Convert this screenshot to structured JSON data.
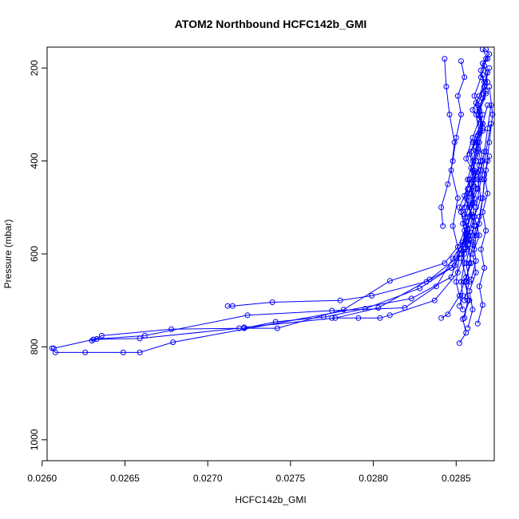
{
  "chart_data": {
    "type": "line",
    "title": "ATOM2 Northbound HCFC142b_GMI",
    "xlabel": "HCFC142b_GMI",
    "ylabel": "Pressure (mbar)",
    "xlim": [
      0.02603,
      0.02873
    ],
    "ylim": [
      1045,
      155
    ],
    "y_reversed": true,
    "x_ticks": [
      0.026,
      0.0265,
      0.027,
      0.0275,
      0.028,
      0.0285
    ],
    "x_tick_labels": [
      "0.0260",
      "0.0265",
      "0.0270",
      "0.0275",
      "0.0280",
      "0.0285"
    ],
    "y_ticks": [
      200,
      400,
      600,
      800,
      1000
    ],
    "y_tick_labels": [
      "200",
      "400",
      "600",
      "800",
      "1000"
    ],
    "marker": "open-circle",
    "color": "#0000ff",
    "grid": false,
    "series": [
      {
        "x": [
          0.02606,
          0.02608,
          0.02626,
          0.02649,
          0.02659,
          0.02679,
          0.02823,
          0.02847,
          0.02852,
          0.02856,
          0.02858,
          0.02861,
          0.02857,
          0.0286,
          0.02863,
          0.02866,
          0.0286,
          0.02864,
          0.02867,
          0.02869,
          0.02866,
          0.0287,
          0.02868
        ],
        "y": [
          803,
          812,
          812,
          812,
          812,
          790,
          696,
          650,
          600,
          560,
          520,
          480,
          440,
          400,
          360,
          320,
          290,
          260,
          230,
          210,
          190,
          170,
          160
        ]
      },
      {
        "x": [
          0.02607,
          0.02631,
          0.02659,
          0.02719,
          0.02742,
          0.02782,
          0.0281,
          0.02843,
          0.02851,
          0.02855,
          0.02853,
          0.02858,
          0.02862,
          0.02856,
          0.0286,
          0.02864,
          0.02862,
          0.02867,
          0.02865,
          0.02869,
          0.02866
        ],
        "y": [
          803,
          784,
          782,
          760,
          760,
          720,
          658,
          620,
          585,
          550,
          510,
          470,
          430,
          395,
          350,
          310,
          275,
          240,
          205,
          180,
          160
        ]
      },
      {
        "x": [
          0.0263,
          0.02636,
          0.02678,
          0.02722,
          0.02741,
          0.0277,
          0.02795,
          0.02828,
          0.02847,
          0.02853,
          0.02857,
          0.02855,
          0.02859,
          0.02862,
          0.02858,
          0.02863,
          0.02866,
          0.02861,
          0.02865,
          0.02868
        ],
        "y": [
          787,
          776,
          762,
          760,
          746,
          736,
          718,
          674,
          630,
          590,
          555,
          515,
          470,
          425,
          385,
          345,
          300,
          260,
          220,
          180
        ]
      },
      {
        "x": [
          0.02633,
          0.02662,
          0.02724,
          0.02775,
          0.02819,
          0.02838,
          0.02848,
          0.02854,
          0.02856,
          0.02852,
          0.02857,
          0.02861,
          0.02859,
          0.02864,
          0.02862,
          0.02866,
          0.02869,
          0.02867
        ],
        "y": [
          783,
          776,
          732,
          722,
          716,
          670,
          610,
          575,
          540,
          500,
          460,
          420,
          380,
          340,
          300,
          265,
          230,
          195
        ]
      },
      {
        "x": [
          0.02712,
          0.02715,
          0.02739,
          0.0278,
          0.02799,
          0.02832,
          0.02849,
          0.02853,
          0.02856,
          0.02859,
          0.02855,
          0.02858,
          0.02862,
          0.0286,
          0.02865,
          0.02863,
          0.02867,
          0.0287
        ],
        "y": [
          712,
          712,
          704,
          700,
          690,
          660,
          625,
          590,
          555,
          515,
          475,
          440,
          400,
          360,
          320,
          280,
          240,
          200
        ]
      },
      {
        "x": [
          0.02722,
          0.02777,
          0.02803,
          0.02834,
          0.0285,
          0.02857,
          0.02854,
          0.02858,
          0.02861,
          0.02859,
          0.02863,
          0.02866,
          0.02864,
          0.02868,
          0.02866
        ],
        "y": [
          758,
          738,
          716,
          655,
          610,
          570,
          535,
          495,
          455,
          415,
          375,
          335,
          295,
          255,
          215
        ]
      },
      {
        "x": [
          0.02775,
          0.02791,
          0.02804,
          0.0281,
          0.02837,
          0.02851,
          0.02855,
          0.02857,
          0.0286,
          0.02856,
          0.02861,
          0.02865,
          0.02862,
          0.02866,
          0.02869
        ],
        "y": [
          738,
          738,
          738,
          732,
          700,
          640,
          600,
          560,
          520,
          480,
          440,
          400,
          360,
          320,
          280
        ]
      },
      {
        "x": [
          0.02841,
          0.02845,
          0.02852,
          0.02856,
          0.02853,
          0.02858,
          0.02856,
          0.02861,
          0.02859,
          0.02864,
          0.02862,
          0.02866,
          0.02864,
          0.02868
        ],
        "y": [
          738,
          730,
          690,
          650,
          610,
          570,
          530,
          490,
          450,
          410,
          370,
          330,
          290,
          250
        ]
      },
      {
        "x": [
          0.02843,
          0.02844,
          0.02846,
          0.02849,
          0.02847,
          0.02851,
          0.02848,
          0.02852,
          0.0285,
          0.02854
        ],
        "y": [
          180,
          240,
          300,
          360,
          420,
          480,
          540,
          600,
          660,
          720
        ]
      },
      {
        "x": [
          0.02842,
          0.02841,
          0.02845,
          0.02848,
          0.0285,
          0.02853,
          0.02851,
          0.02855,
          0.02853
        ],
        "y": [
          540,
          500,
          450,
          400,
          350,
          300,
          260,
          220,
          185
        ]
      },
      {
        "x": [
          0.02852,
          0.02856,
          0.02854,
          0.02858,
          0.02855,
          0.02859,
          0.02857,
          0.02861,
          0.02858,
          0.02862,
          0.0286,
          0.02863
        ],
        "y": [
          792,
          770,
          740,
          700,
          660,
          620,
          580,
          540,
          500,
          460,
          420,
          380
        ]
      },
      {
        "x": [
          0.02857,
          0.0286,
          0.02858,
          0.02862,
          0.0286,
          0.02864,
          0.02861,
          0.02865,
          0.02863,
          0.02866,
          0.02864
        ],
        "y": [
          760,
          720,
          680,
          640,
          600,
          560,
          520,
          480,
          440,
          400,
          360
        ]
      },
      {
        "x": [
          0.02863,
          0.02866,
          0.02864,
          0.02867,
          0.02865,
          0.02868,
          0.02866,
          0.02869,
          0.02867,
          0.0287
        ],
        "y": [
          750,
          710,
          670,
          630,
          590,
          550,
          510,
          470,
          430,
          390
        ]
      },
      {
        "x": [
          0.02853,
          0.02855,
          0.02857,
          0.02856,
          0.02859,
          0.02861,
          0.0286,
          0.02863,
          0.02865,
          0.02867,
          0.02869,
          0.02871
        ],
        "y": [
          600,
          590,
          590,
          570,
          545,
          520,
          490,
          460,
          420,
          380,
          330,
          280
        ]
      },
      {
        "x": [
          0.02859,
          0.02862,
          0.0286,
          0.02864,
          0.02866,
          0.02868,
          0.0287,
          0.02872,
          0.0287
        ],
        "y": [
          655,
          615,
          575,
          535,
          480,
          420,
          360,
          300,
          240
        ]
      },
      {
        "x": [
          0.02855,
          0.02858,
          0.02856,
          0.0286,
          0.02862,
          0.02865,
          0.02868,
          0.02871
        ],
        "y": [
          700,
          660,
          620,
          560,
          500,
          440,
          380,
          320
        ]
      },
      {
        "x": [
          0.02852,
          0.02854,
          0.02853,
          0.02855,
          0.02854,
          0.02856,
          0.02855,
          0.02857
        ],
        "y": [
          712,
          690,
          660,
          620,
          580,
          540,
          500,
          460
        ]
      },
      {
        "x": [
          0.02855,
          0.02857,
          0.02856,
          0.02858,
          0.0286,
          0.02862
        ],
        "y": [
          738,
          700,
          660,
          620,
          580,
          540
        ]
      },
      {
        "x": [
          0.02861,
          0.02862,
          0.02864,
          0.02866,
          0.02867,
          0.02869
        ],
        "y": [
          590,
          560,
          520,
          480,
          440,
          400
        ]
      }
    ]
  }
}
